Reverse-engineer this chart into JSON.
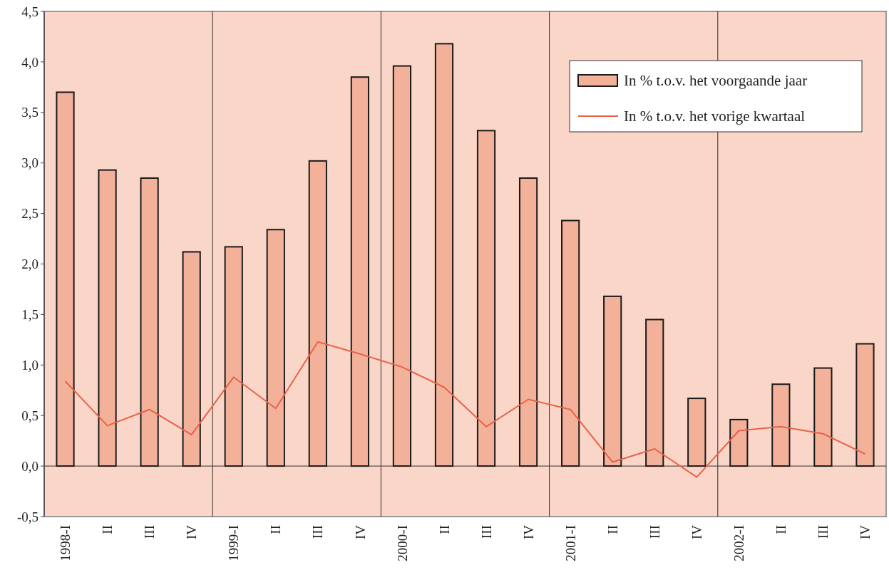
{
  "chart_data": {
    "type": "bar",
    "categories": [
      "1998-I",
      "II",
      "III",
      "IV",
      "1999-I",
      "II",
      "III",
      "IV",
      "2000-I",
      "II",
      "III",
      "IV",
      "2001-I",
      "II",
      "III",
      "IV",
      "2002-I",
      "II",
      "III",
      "IV"
    ],
    "series": [
      {
        "name": "In % t.o.v. het voorgaande jaar",
        "color": "#f4b19a",
        "values": [
          3.7,
          2.93,
          2.85,
          2.12,
          2.17,
          2.34,
          3.02,
          3.85,
          3.96,
          4.18,
          3.32,
          2.85,
          2.43,
          1.68,
          1.45,
          0.67,
          0.46,
          0.81,
          0.97,
          1.21
        ]
      },
      {
        "name": "In % t.o.v. het vorige kwartaal",
        "type": "line",
        "color": "#e8634a",
        "values": [
          0.84,
          0.4,
          0.56,
          0.31,
          0.88,
          0.57,
          1.23,
          1.11,
          0.98,
          0.78,
          0.39,
          0.66,
          0.56,
          0.04,
          0.17,
          -0.11,
          0.35,
          0.39,
          0.32,
          0.12
        ]
      }
    ],
    "ylim": [
      -0.5,
      4.5
    ],
    "yticks": [
      {
        "value": -0.5,
        "label": "-0,5"
      },
      {
        "value": 0,
        "label": "0,0"
      },
      {
        "value": 0.5,
        "label": "0,5"
      },
      {
        "value": 1,
        "label": "1,0"
      },
      {
        "value": 1.5,
        "label": "1,5"
      },
      {
        "value": 2,
        "label": "2,0"
      },
      {
        "value": 2.5,
        "label": "2,5"
      },
      {
        "value": 3,
        "label": "3,0"
      },
      {
        "value": 3.5,
        "label": "3,5"
      },
      {
        "value": 4,
        "label": "4,0"
      },
      {
        "value": 4.5,
        "label": "4,5"
      }
    ],
    "grid": false,
    "legend": "top right"
  }
}
